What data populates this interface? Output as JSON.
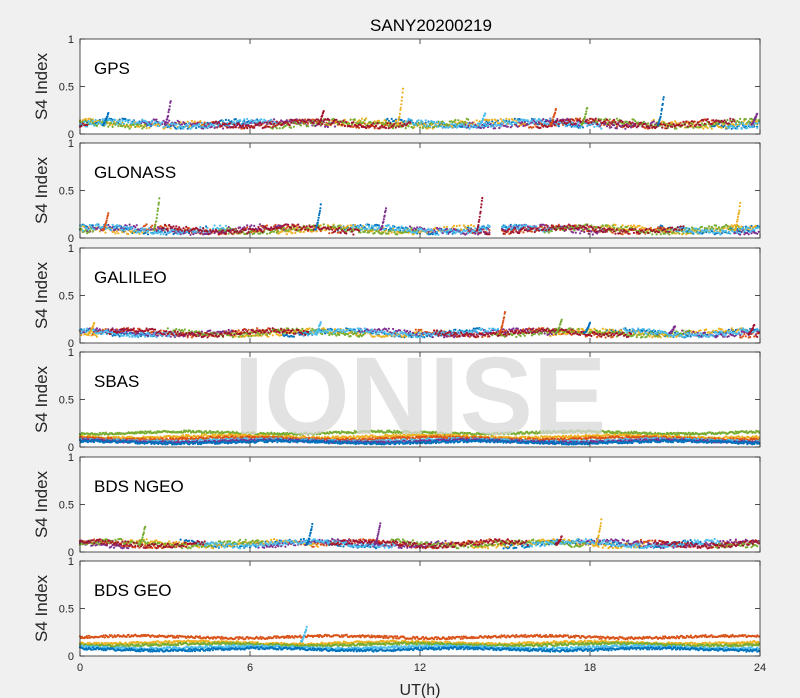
{
  "chart_data": {
    "type": "scatter",
    "title": "SANY20200219",
    "xlabel": "UT(h)",
    "xlim": [
      0,
      24
    ],
    "xticks": [
      0,
      6,
      12,
      18,
      24
    ],
    "xtick_labels": [
      "0",
      "6",
      "12",
      "18",
      "24"
    ],
    "watermark": "IONISE",
    "series_colors": [
      "#0072BD",
      "#D95319",
      "#EDB120",
      "#7E2F8E",
      "#77AC30",
      "#4DBEEE",
      "#A2142F"
    ],
    "panels": [
      {
        "label": "GPS",
        "ylabel": "S4 Index",
        "ylim": [
          0,
          1
        ],
        "yticks": [
          0,
          0.5,
          1
        ],
        "ytick_labels": [
          "0",
          "0.5",
          "1"
        ],
        "baseline": 0.1,
        "noise": 0.03,
        "spikes": [
          [
            1.0,
            0.22
          ],
          [
            3.2,
            0.35
          ],
          [
            8.6,
            0.25
          ],
          [
            11.4,
            0.48
          ],
          [
            14.3,
            0.22
          ],
          [
            16.8,
            0.27
          ],
          [
            17.9,
            0.28
          ],
          [
            20.6,
            0.39
          ],
          [
            23.9,
            0.22
          ]
        ]
      },
      {
        "label": "GLONASS",
        "ylabel": "S4 Index",
        "ylim": [
          0,
          1
        ],
        "yticks": [
          0,
          0.5,
          1
        ],
        "ytick_labels": [
          "0",
          "0.5",
          "1"
        ],
        "baseline": 0.08,
        "noise": 0.03,
        "gaps": [
          [
            14.5,
            14.9
          ]
        ],
        "spikes": [
          [
            1.0,
            0.27
          ],
          [
            2.8,
            0.42
          ],
          [
            8.5,
            0.35
          ],
          [
            10.8,
            0.32
          ],
          [
            14.2,
            0.43
          ],
          [
            23.3,
            0.36
          ]
        ]
      },
      {
        "label": "GALILEO",
        "ylabel": "S4 Index",
        "ylim": [
          0,
          1
        ],
        "yticks": [
          0,
          0.5,
          1
        ],
        "ytick_labels": [
          "0",
          "0.5",
          "1"
        ],
        "baseline": 0.1,
        "noise": 0.025,
        "spikes": [
          [
            0.5,
            0.21
          ],
          [
            8.5,
            0.22
          ],
          [
            15.0,
            0.33
          ],
          [
            17.0,
            0.25
          ],
          [
            18.0,
            0.22
          ],
          [
            21.0,
            0.18
          ],
          [
            23.8,
            0.19
          ]
        ]
      },
      {
        "label": "SBAS",
        "ylabel": "S4 Index",
        "ylim": [
          0,
          1
        ],
        "yticks": [
          0,
          0.5,
          1
        ],
        "ytick_labels": [
          "0",
          "0.5",
          "1"
        ],
        "bands": [
          {
            "color": "#77AC30",
            "y": 0.15
          },
          {
            "color": "#EDB120",
            "y": 0.11
          },
          {
            "color": "#D95319",
            "y": 0.09
          },
          {
            "color": "#4DBEEE",
            "y": 0.07
          },
          {
            "color": "#7E2F8E",
            "y": 0.06
          },
          {
            "color": "#0072BD",
            "y": 0.05
          }
        ]
      },
      {
        "label": "BDS NGEO",
        "ylabel": "S4 Index",
        "ylim": [
          0,
          1
        ],
        "yticks": [
          0,
          0.5,
          1
        ],
        "ytick_labels": [
          "0",
          "0.5",
          "1"
        ],
        "baseline": 0.08,
        "noise": 0.025,
        "spikes": [
          [
            2.3,
            0.27
          ],
          [
            8.2,
            0.3
          ],
          [
            10.6,
            0.31
          ],
          [
            17.0,
            0.16
          ],
          [
            18.4,
            0.34
          ]
        ]
      },
      {
        "label": "BDS GEO",
        "ylabel": "S4 Index",
        "ylim": [
          0,
          1
        ],
        "yticks": [
          0,
          0.5,
          1
        ],
        "ytick_labels": [
          "0",
          "0.5",
          "1"
        ],
        "bands": [
          {
            "color": "#D95319",
            "y": 0.2
          },
          {
            "color": "#EDB120",
            "y": 0.14
          },
          {
            "color": "#77AC30",
            "y": 0.12
          },
          {
            "color": "#4DBEEE",
            "y": 0.09
          },
          {
            "color": "#0072BD",
            "y": 0.07
          }
        ],
        "spikes": [
          [
            8.0,
            0.3
          ]
        ]
      }
    ]
  }
}
